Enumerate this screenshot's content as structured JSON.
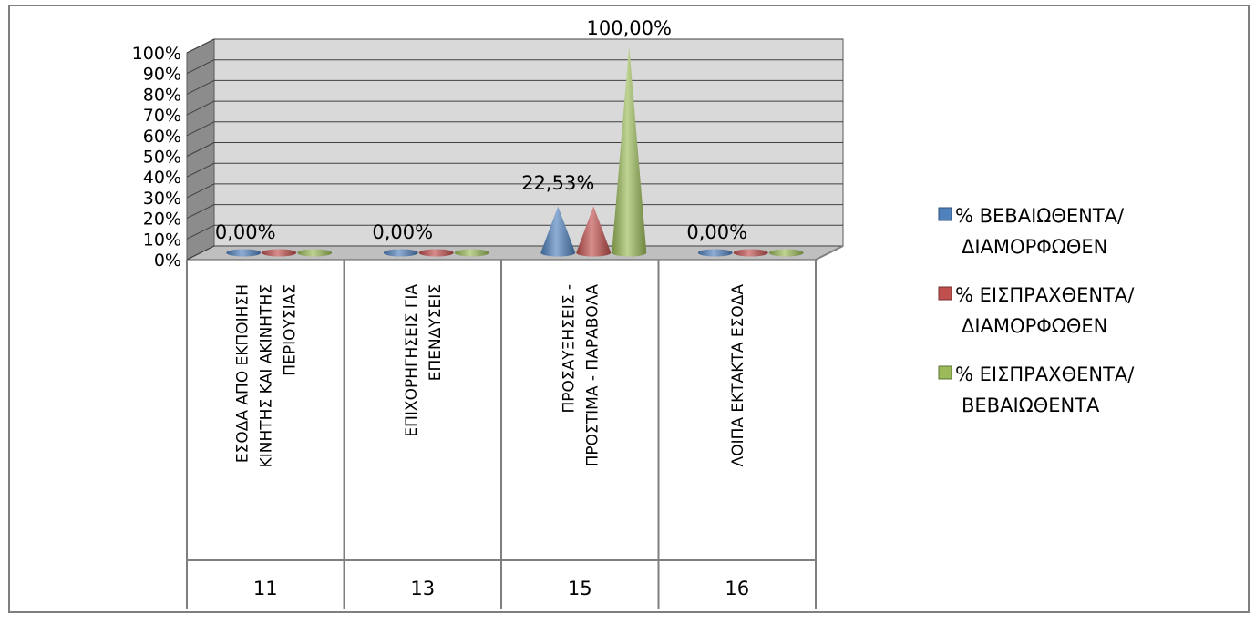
{
  "chart_data": {
    "type": "bar",
    "bar_shape": "cone",
    "categories": [
      [
        "ΕΣΟΔΑ ΑΠΟ ΕΚΠΟΙΗΣΗ",
        "ΚΙΝΗΤΗΣ ΚΑΙ ΑΚΙΝΗΤΗΣ",
        "ΠΕΡΙΟΥΣΙΑΣ"
      ],
      [
        "ΕΠΙΧΟΡΗΓΗΣΕΙΣ ΓΙΑ",
        "ΕΠΕΝΔΥΣΕΙΣ"
      ],
      [
        "ΠΡΟΣΑΥΞΗΣΕΙΣ -",
        "ΠΡΟΣΤΙΜΑ - ΠΑΡΑΒΟΛΑ"
      ],
      [
        "ΛΟΙΠΑ ΕΚΤΑΚΤΑ ΕΣΟΔΑ"
      ]
    ],
    "codes": [
      "11",
      "13",
      "15",
      "16"
    ],
    "series": [
      {
        "name": [
          "% ΒΕΒΑΙΩΘΕΝΤΑ/",
          "ΔΙΑΜΟΡΦΩΘΕΝ"
        ],
        "color": "#4f81bd",
        "values": [
          0,
          0,
          22.53,
          0
        ]
      },
      {
        "name": [
          "% ΕΙΣΠΡΑΧΘΕΝΤΑ/",
          "ΔΙΑΜΟΡΦΩΘΕΝ"
        ],
        "color": "#c0504d",
        "values": [
          0,
          0,
          22.53,
          0
        ]
      },
      {
        "name": [
          "% ΕΙΣΠΡΑΧΘΕΝΤΑ/",
          "ΒΕΒΑΙΩΘΕΝΤΑ"
        ],
        "color": "#9bbb59",
        "values": [
          0,
          0,
          100,
          0
        ]
      }
    ],
    "data_labels": [
      {
        "category": 0,
        "text": "0,00%"
      },
      {
        "category": 1,
        "text": "0,00%"
      },
      {
        "category": 2,
        "text": "22,53%"
      },
      {
        "category": 2,
        "text": "100,00%"
      },
      {
        "category": 3,
        "text": "0,00%"
      }
    ],
    "yticks": [
      "0%",
      "10%",
      "20%",
      "30%",
      "40%",
      "50%",
      "60%",
      "70%",
      "80%",
      "90%",
      "100%"
    ],
    "ylim": [
      0,
      100
    ],
    "grid": true,
    "legend": "right",
    "colors": {
      "wall": "#d9d9d9",
      "side_wall": "#8c8c8c",
      "gridline": "#404040",
      "frame": "#7f7f7f"
    }
  }
}
